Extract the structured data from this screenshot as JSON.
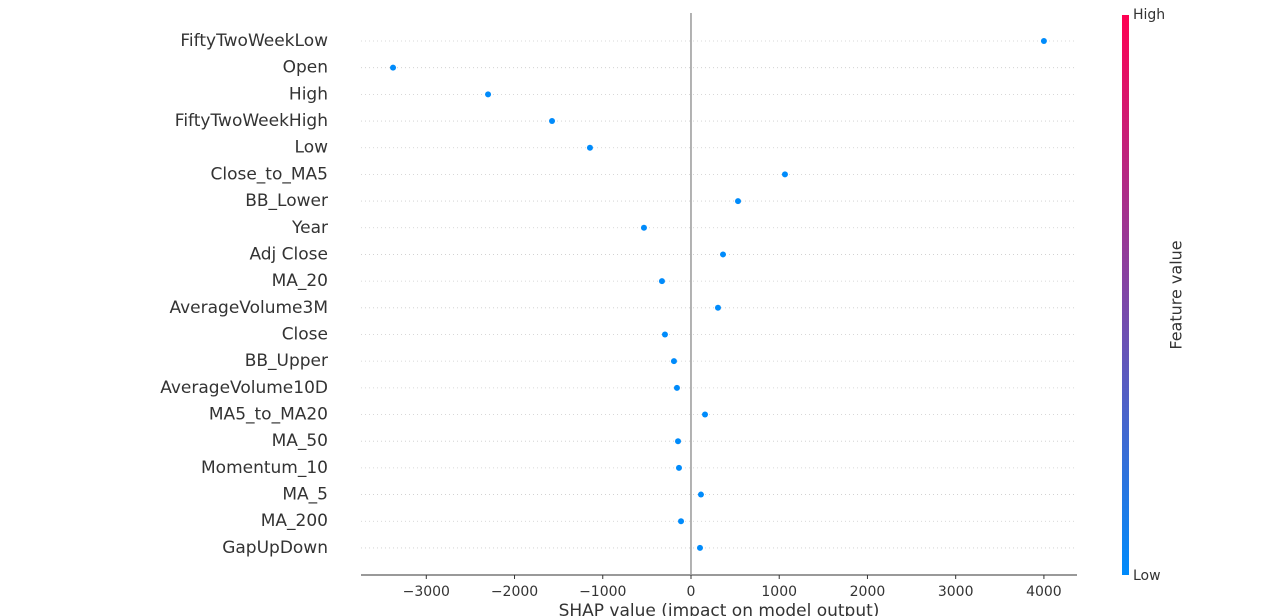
{
  "chart_data": {
    "type": "scatter",
    "categories": [
      "FiftyTwoWeekLow",
      "Open",
      "High",
      "FiftyTwoWeekHigh",
      "Low",
      "Close_to_MA5",
      "BB_Lower",
      "Year",
      "Adj Close",
      "MA_20",
      "AverageVolume3M",
      "Close",
      "BB_Upper",
      "AverageVolume10D",
      "MA5_to_MA20",
      "MA_50",
      "Momentum_10",
      "MA_5",
      "MA_200",
      "GapUpDown"
    ],
    "values": [
      4000,
      -3377,
      -2300,
      -1575,
      -1145,
      1065,
      533,
      -533,
      363,
      -329,
      306,
      -295,
      -193,
      -159,
      159,
      -147,
      -136,
      113,
      -113,
      102
    ],
    "color": "#008bfb",
    "xlim": [
      -3740,
      4375
    ],
    "xticks": [
      {
        "value": -3000,
        "label": "−3000"
      },
      {
        "value": -2000,
        "label": "−2000"
      },
      {
        "value": -1000,
        "label": "−1000"
      },
      0,
      1000,
      2000,
      3000,
      4000
    ],
    "xlabel": "SHAP value (impact on model output)",
    "grid": true,
    "colorbar": {
      "label": "Feature value",
      "low_label": "Low",
      "high_label": "High",
      "colors": [
        "#008bfb",
        "#ff0052"
      ]
    }
  }
}
